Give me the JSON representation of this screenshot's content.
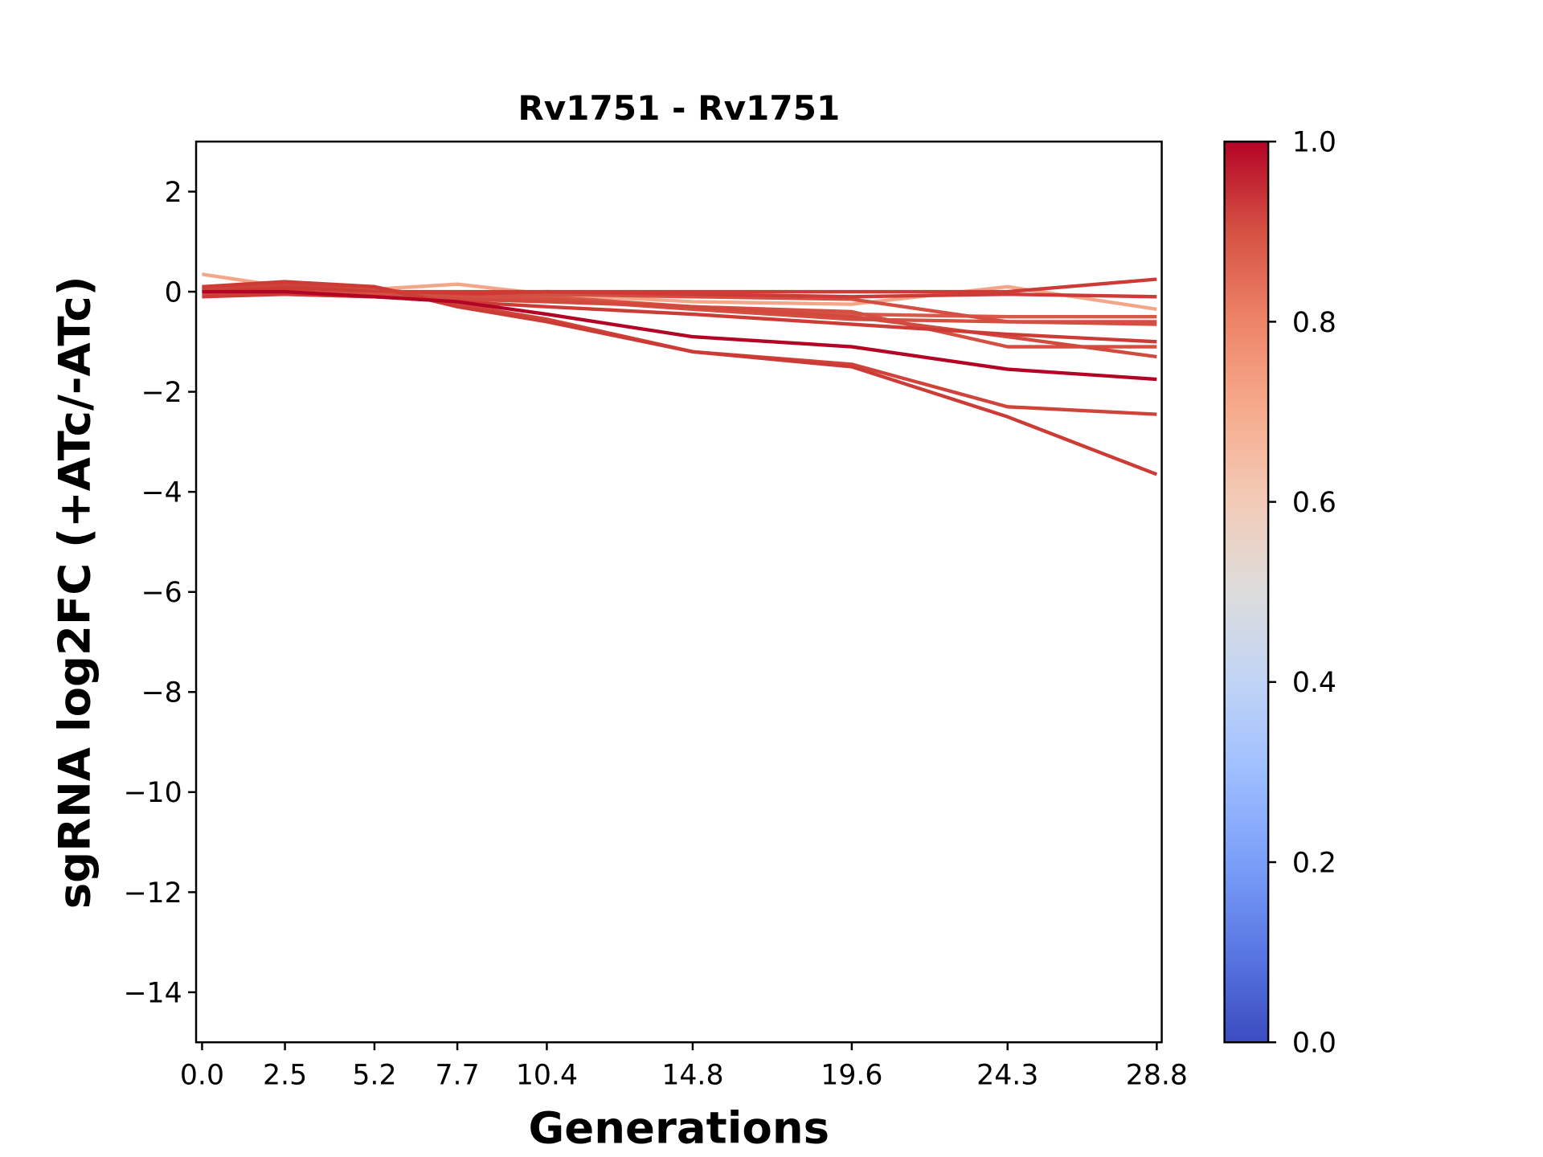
{
  "chart_data": {
    "type": "line",
    "title": "Rv1751 - Rv1751",
    "xlabel": "Generations",
    "ylabel": "sgRNA log2FC (+ATc/-ATc)",
    "x": [
      0.0,
      2.5,
      5.2,
      7.7,
      10.4,
      14.8,
      19.6,
      24.3,
      28.8
    ],
    "x_tick_labels": [
      "0.0",
      "2.5",
      "5.2",
      "7.7",
      "10.4",
      "14.8",
      "19.6",
      "24.3",
      "28.8"
    ],
    "y_ticks": [
      2,
      0,
      -2,
      -4,
      -6,
      -8,
      -10,
      -12,
      -14
    ],
    "y_tick_labels": [
      "2",
      "0",
      "−2",
      "−4",
      "−6",
      "−8",
      "−10",
      "−12",
      "−14"
    ],
    "xlim": [
      -0.18,
      28.95
    ],
    "ylim": [
      -15,
      3
    ],
    "grid": false,
    "colorbar": {
      "colormap": "coolwarm",
      "range": [
        0.0,
        1.0
      ],
      "tick_labels": [
        "0.0",
        "0.2",
        "0.4",
        "0.6",
        "0.8",
        "1.0"
      ],
      "ticks": [
        0.0,
        0.2,
        0.4,
        0.6,
        0.8,
        1.0
      ],
      "stops": [
        "#3b4cc0",
        "#5977e3",
        "#7b9ff9",
        "#9ebeff",
        "#c0d4f5",
        "#dddcdc",
        "#f2cbb7",
        "#f7ac8e",
        "#ee8468",
        "#d65244",
        "#b40426"
      ]
    },
    "series": [
      {
        "color_value": 0.72,
        "color": "#f4a688",
        "values": [
          0.35,
          0.1,
          0.05,
          0.15,
          -0.05,
          -0.2,
          -0.25,
          0.1,
          -0.35
        ]
      },
      {
        "color_value": 0.88,
        "color": "#d95847",
        "values": [
          -0.05,
          0.0,
          0.0,
          -0.05,
          -0.1,
          -0.3,
          -0.45,
          -0.5,
          -0.5
        ]
      },
      {
        "color_value": 0.9,
        "color": "#d44e41",
        "values": [
          0.0,
          0.1,
          0.05,
          -0.1,
          -0.05,
          -0.1,
          -0.15,
          -0.6,
          -0.6
        ]
      },
      {
        "color_value": 0.9,
        "color": "#d44e41",
        "values": [
          0.05,
          0.0,
          -0.05,
          -0.1,
          -0.15,
          -0.35,
          -0.55,
          -0.6,
          -0.65
        ]
      },
      {
        "color_value": 0.92,
        "color": "#cc3b35",
        "values": [
          0.0,
          0.05,
          0.0,
          0.0,
          0.0,
          0.0,
          0.0,
          0.0,
          0.25
        ]
      },
      {
        "color_value": 0.92,
        "color": "#cc3b35",
        "values": [
          0.05,
          0.1,
          0.0,
          -0.05,
          0.0,
          -0.05,
          -0.1,
          -0.05,
          -0.1
        ]
      },
      {
        "color_value": 0.9,
        "color": "#d44e41",
        "values": [
          0.0,
          0.0,
          -0.05,
          -0.1,
          -0.15,
          -0.3,
          -0.4,
          -1.1,
          -1.1
        ]
      },
      {
        "color_value": 0.9,
        "color": "#d24a3e",
        "values": [
          -0.05,
          -0.05,
          -0.1,
          -0.15,
          -0.2,
          -0.3,
          -0.5,
          -0.9,
          -1.3
        ]
      },
      {
        "color_value": 0.92,
        "color": "#cc3b35",
        "values": [
          -0.1,
          -0.05,
          -0.1,
          -0.2,
          -0.3,
          -0.45,
          -0.65,
          -0.85,
          -1.0
        ]
      },
      {
        "color_value": 0.91,
        "color": "#cf4339",
        "values": [
          0.05,
          0.15,
          0.1,
          -0.25,
          -0.55,
          -1.2,
          -1.45,
          -2.3,
          -2.45
        ]
      },
      {
        "color_value": 0.92,
        "color": "#cc3b35",
        "values": [
          0.1,
          0.2,
          0.1,
          -0.3,
          -0.6,
          -1.2,
          -1.5,
          -2.5,
          -3.65
        ]
      },
      {
        "color_value": 1.0,
        "color": "#b40426",
        "values": [
          0.0,
          0.0,
          -0.1,
          -0.2,
          -0.45,
          -0.9,
          -1.1,
          -1.55,
          -1.75
        ]
      }
    ]
  }
}
